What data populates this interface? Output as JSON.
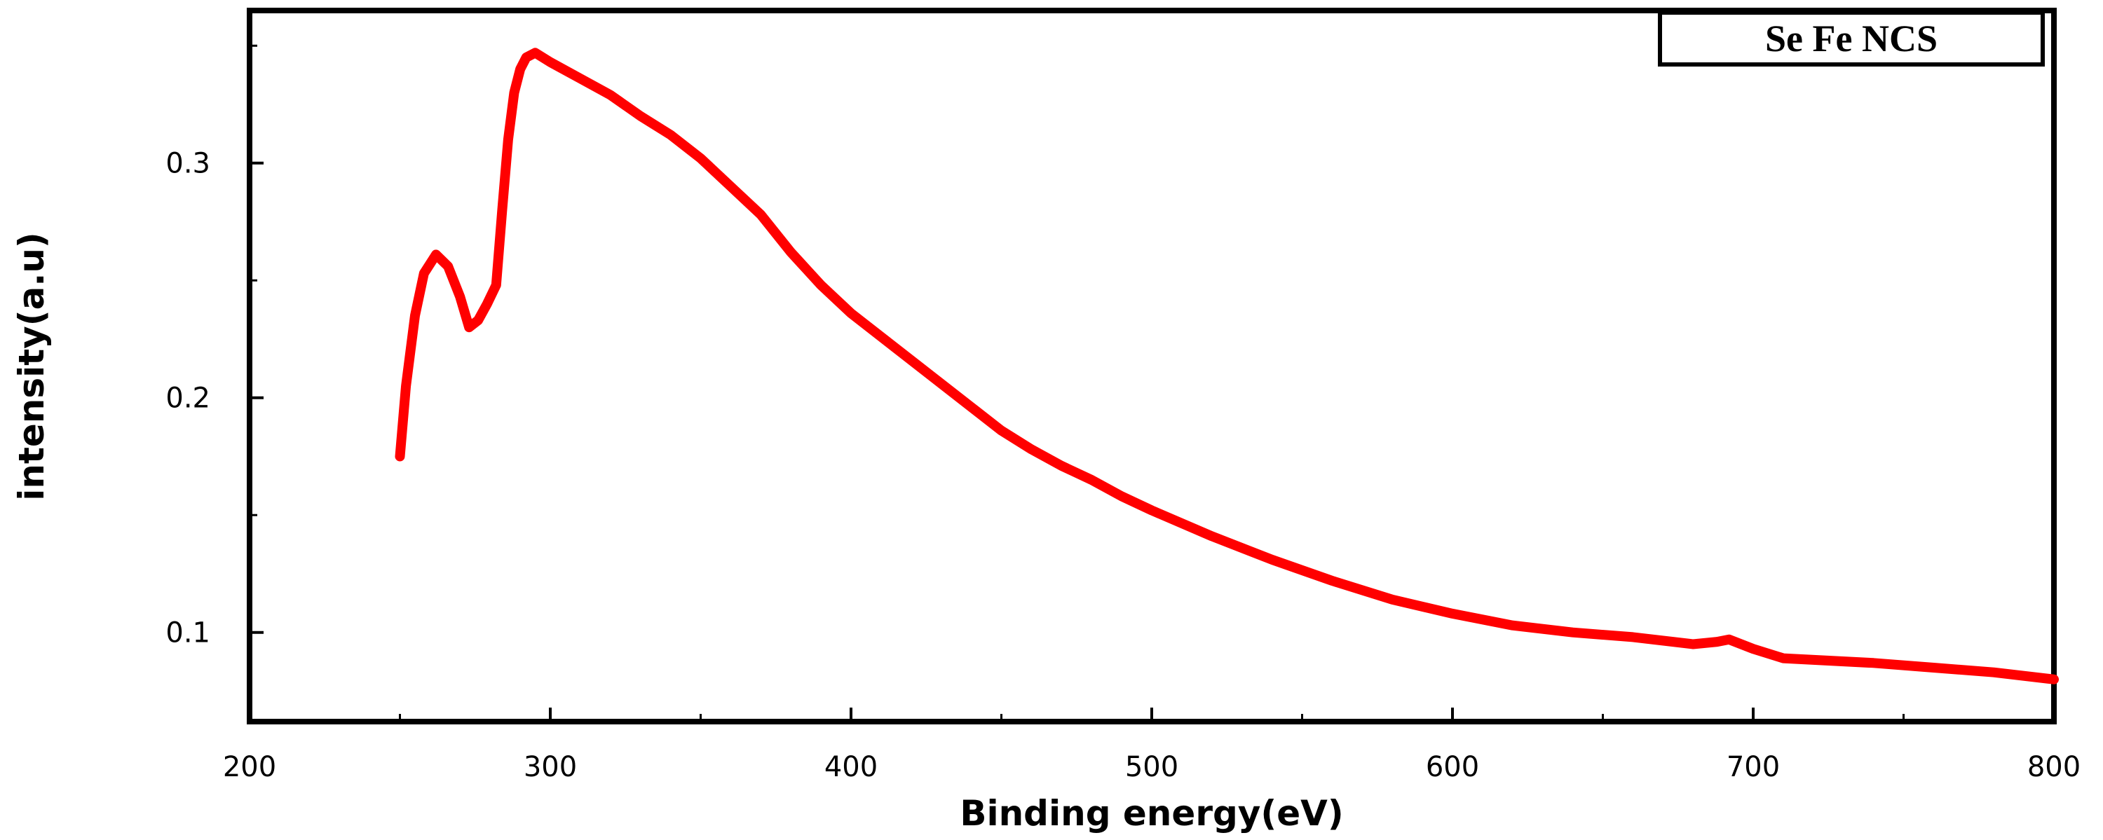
{
  "chart_data": {
    "type": "line",
    "title": "",
    "xlabel": "Binding energy(eV)",
    "ylabel": "intensity(a.u)",
    "xlim": [
      200,
      800
    ],
    "ylim": [
      0.062,
      0.365
    ],
    "x_ticks": [
      200,
      300,
      400,
      500,
      600,
      700,
      800
    ],
    "y_ticks": [
      0.1,
      0.2,
      0.3
    ],
    "x_tick_labels": [
      "200",
      "300",
      "400",
      "500",
      "600",
      "700",
      "800"
    ],
    "y_tick_labels": [
      "0.1",
      "0.2",
      "0.3"
    ],
    "grid": false,
    "legend_position": "top-right",
    "series": [
      {
        "name": "Se Fe NCS",
        "color": "#ff0000",
        "x": [
          250,
          252,
          255,
          258,
          262,
          266,
          270,
          273,
          276,
          279,
          282,
          284,
          286,
          288,
          290,
          292,
          295,
          300,
          310,
          320,
          330,
          340,
          350,
          360,
          370,
          380,
          390,
          400,
          410,
          420,
          430,
          440,
          450,
          460,
          470,
          480,
          490,
          500,
          520,
          540,
          560,
          580,
          600,
          620,
          640,
          660,
          680,
          688,
          692,
          700,
          710,
          740,
          760,
          780,
          800
        ],
        "y": [
          0.175,
          0.205,
          0.235,
          0.253,
          0.261,
          0.256,
          0.243,
          0.23,
          0.233,
          0.24,
          0.248,
          0.28,
          0.31,
          0.33,
          0.34,
          0.345,
          0.347,
          0.343,
          0.336,
          0.329,
          0.32,
          0.312,
          0.302,
          0.29,
          0.278,
          0.262,
          0.248,
          0.236,
          0.226,
          0.216,
          0.206,
          0.196,
          0.186,
          0.178,
          0.171,
          0.165,
          0.158,
          0.152,
          0.141,
          0.131,
          0.122,
          0.114,
          0.108,
          0.103,
          0.1,
          0.098,
          0.095,
          0.096,
          0.097,
          0.093,
          0.089,
          0.087,
          0.085,
          0.083,
          0.08
        ]
      }
    ]
  }
}
